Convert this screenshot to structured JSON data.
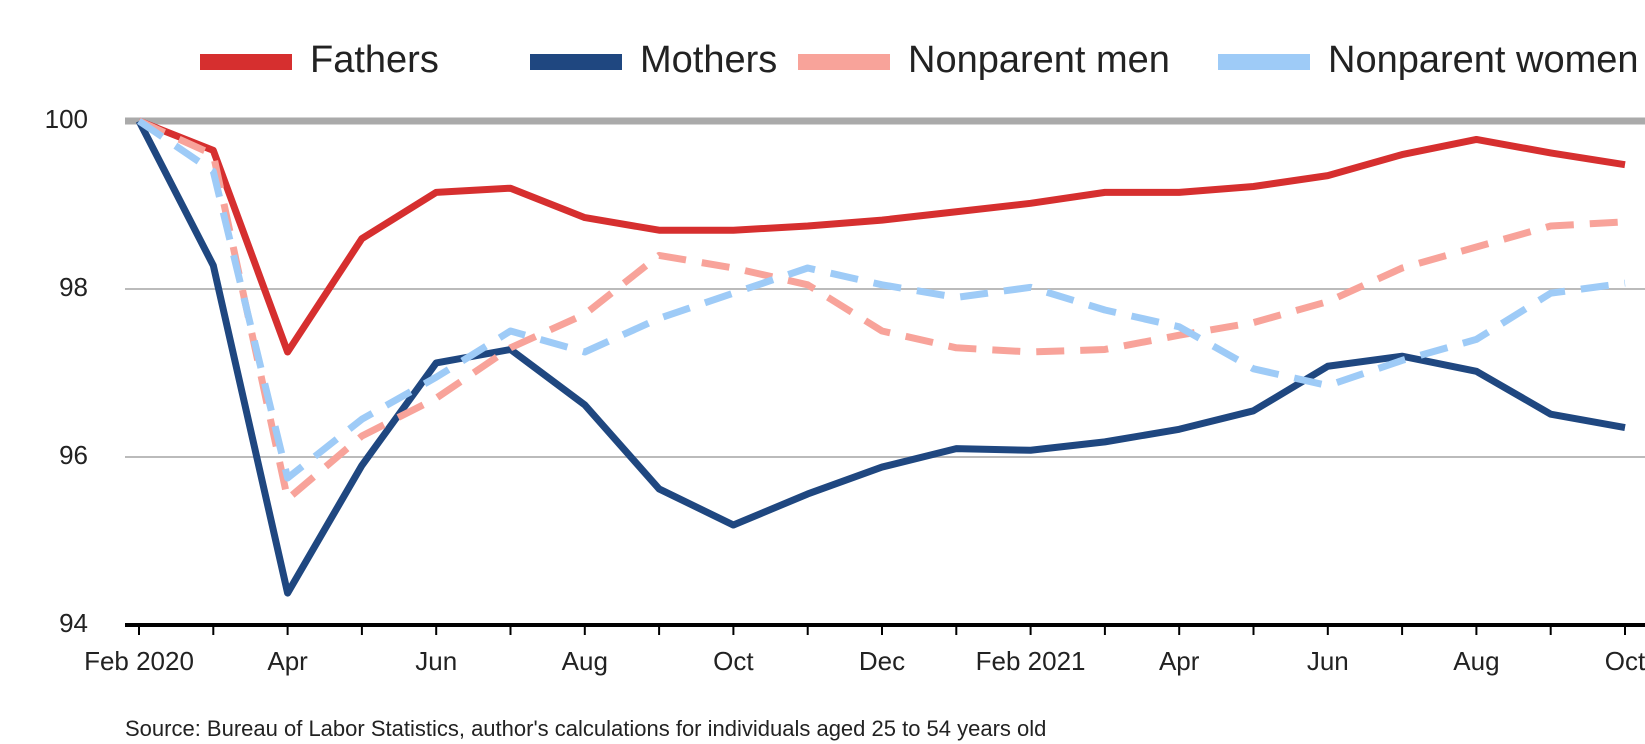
{
  "chart_data": {
    "type": "line",
    "categories": [
      "Feb 2020",
      null,
      "Apr",
      null,
      "Jun",
      null,
      "Aug",
      null,
      "Oct",
      null,
      "Dec",
      null,
      "Feb 2021",
      null,
      "Apr",
      null,
      "Jun",
      null,
      "Aug",
      null,
      "Oct"
    ],
    "series": [
      {
        "name": "Fathers",
        "color": "#d62f2f",
        "dashed": false,
        "values": [
          100,
          99.65,
          97.25,
          98.6,
          99.15,
          99.2,
          98.85,
          98.7,
          98.7,
          98.75,
          98.82,
          98.92,
          99.02,
          99.15,
          99.15,
          99.22,
          99.35,
          99.6,
          99.78,
          99.62,
          99.48
        ]
      },
      {
        "name": "Mothers",
        "color": "#1f4780",
        "dashed": false,
        "values": [
          100,
          98.28,
          94.38,
          95.9,
          97.12,
          97.28,
          96.62,
          95.62,
          95.19,
          95.56,
          95.88,
          96.1,
          96.08,
          96.18,
          96.33,
          96.55,
          97.08,
          97.2,
          97.02,
          96.51,
          96.35
        ]
      },
      {
        "name": "Nonparent men",
        "color": "#f8a39a",
        "dashed": true,
        "values": [
          100,
          99.6,
          95.5,
          96.25,
          96.7,
          97.3,
          97.7,
          98.4,
          98.25,
          98.05,
          97.5,
          97.3,
          97.25,
          97.28,
          97.45,
          97.6,
          97.85,
          98.25,
          98.5,
          98.75,
          98.8
        ]
      },
      {
        "name": "Nonparent women",
        "color": "#9ecbf7",
        "dashed": true,
        "values": [
          100,
          99.4,
          95.75,
          96.45,
          96.95,
          97.5,
          97.25,
          97.65,
          97.95,
          98.25,
          98.05,
          97.9,
          98.02,
          97.75,
          97.55,
          97.05,
          96.85,
          97.15,
          97.4,
          97.95,
          98.07
        ]
      }
    ],
    "ylim": [
      94,
      100
    ],
    "yticks": [
      94,
      96,
      98,
      100
    ],
    "grid": true,
    "source": "Source: Bureau of Labor Statistics, author's calculations for individuals aged 25 to 54 years old"
  }
}
